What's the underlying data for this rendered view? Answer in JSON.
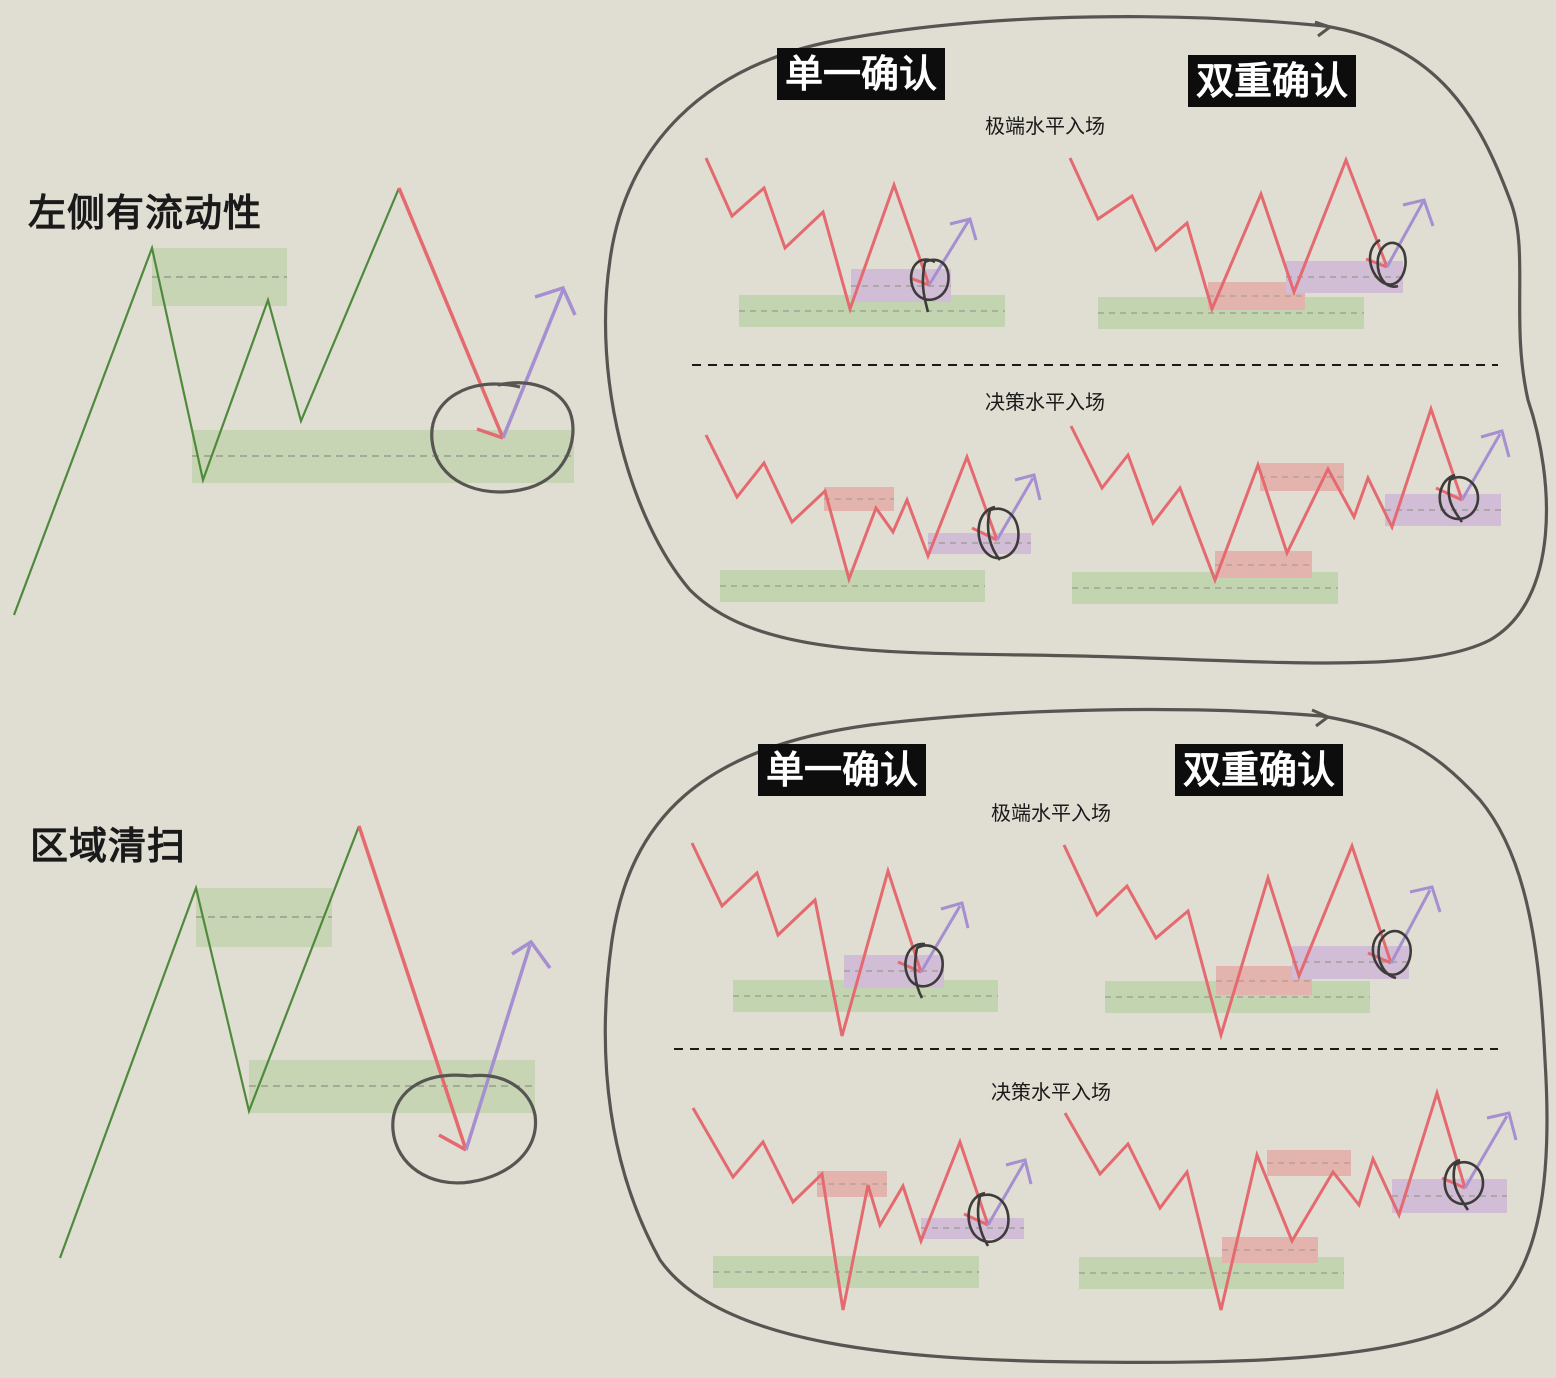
{
  "panels": [
    {
      "title": "左侧有流动性",
      "badge_single": "单一确认",
      "badge_double": "双重确认",
      "label_extreme": "极端水平入场",
      "label_decision": "决策水平入场"
    },
    {
      "title": "区域清扫",
      "badge_single": "单一确认",
      "badge_double": "双重确认",
      "label_extreme": "极端水平入场",
      "label_decision": "决策水平入场"
    }
  ],
  "colors": {
    "background": "#e0ddd2",
    "uptrend_line": "#4f8a3c",
    "downtrend_line": "#e46a6f",
    "entry_arrow": "#a58fd0",
    "liquidity_zone": "#c3d4b0",
    "supply_zone": "#e3b4ae",
    "entry_zone": "#d1bdd6",
    "outline": "#575552"
  }
}
